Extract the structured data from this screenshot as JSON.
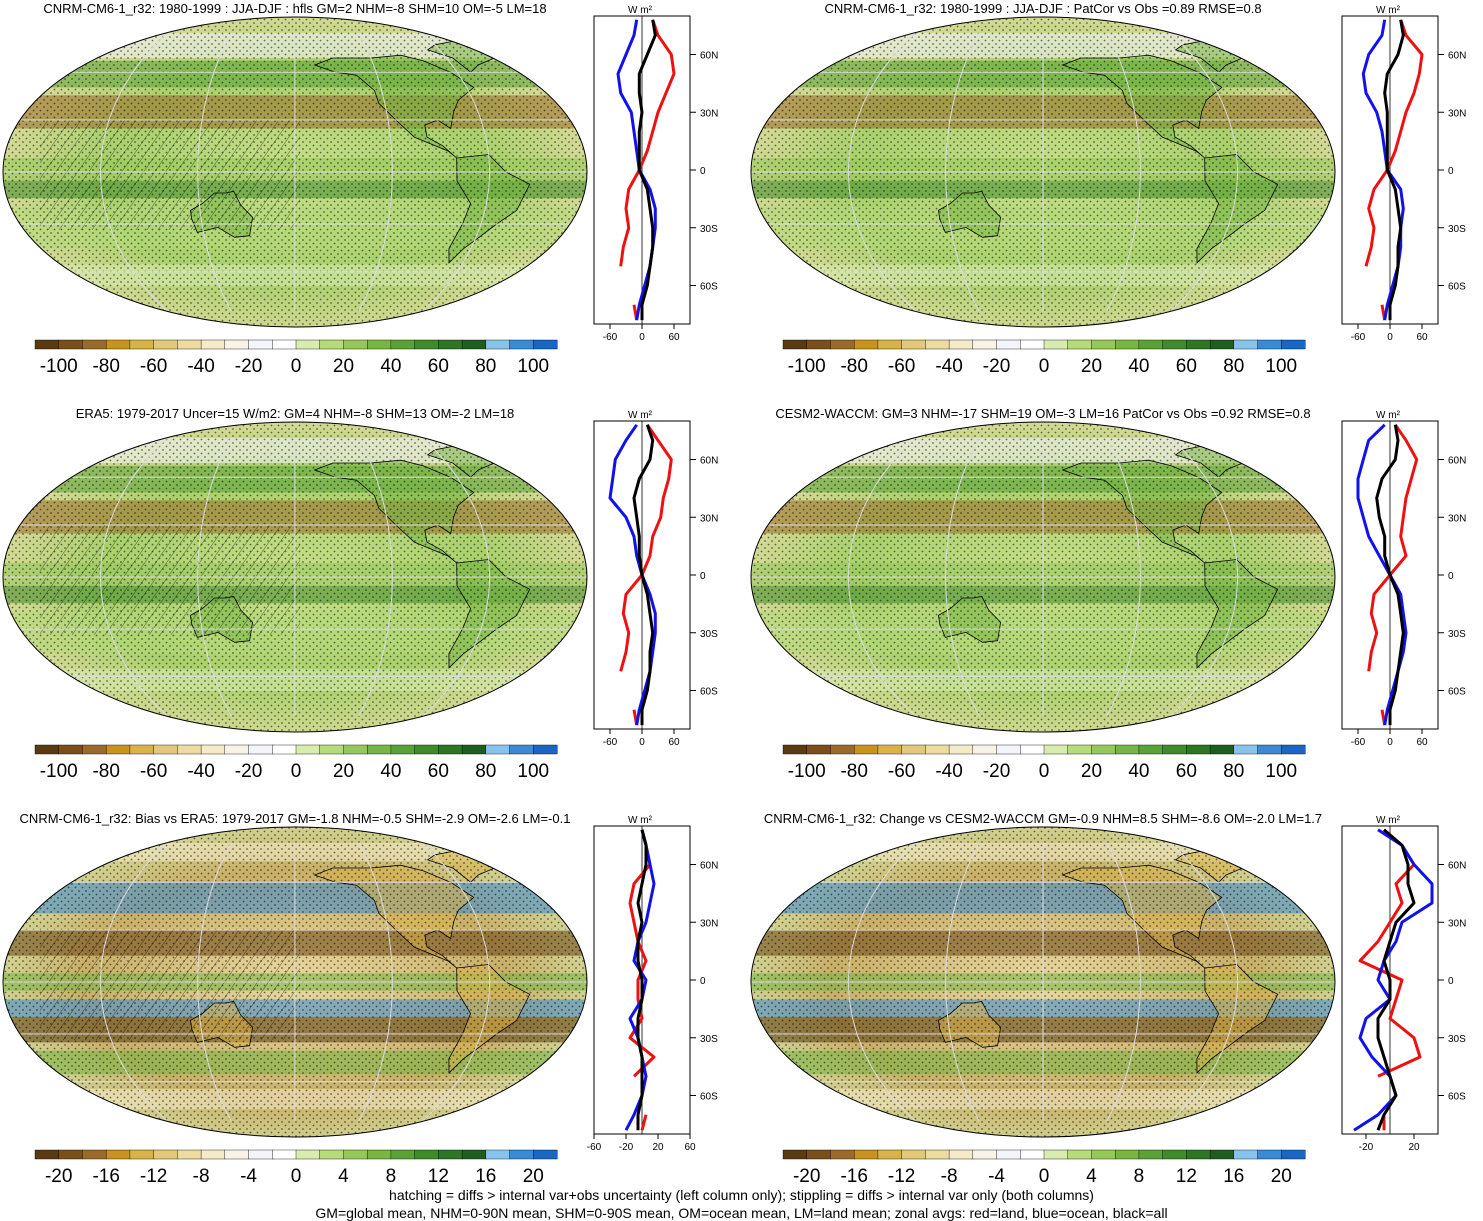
{
  "footer": {
    "line1": "hatching = diffs > internal var+obs uncertainty (left column only); stippling = diffs > internal var only (both columns)",
    "line2": "GM=global mean, NHM=0-90N mean, SHM=0-90S mean, OM=ocean mean, LM=land mean; zonal avgs: red=land, blue=ocean, black=all"
  },
  "colors": {
    "land": "#ee1111",
    "ocean": "#1111ee",
    "all": "#000000",
    "palette": [
      "#5a3a10",
      "#7a4f1c",
      "#9a6a2a",
      "#c8941e",
      "#d9b24a",
      "#e3c87a",
      "#eedba0",
      "#f5ebc8",
      "#f8f3e6",
      "#f4f4fb",
      "#ffffff",
      "#d8ecb0",
      "#b5db7a",
      "#95c85a",
      "#77b544",
      "#5aa136",
      "#3f8a2a",
      "#2e7524",
      "#1e5e1e",
      "#88c3ee",
      "#3a8ad6",
      "#1a66c4"
    ]
  },
  "chart_data": [
    {
      "type": "heatmap",
      "title": "CNRM-CM6-1_r32: 1980-1999 : JJA-DJF : hfls GM=2 NHM=-8 SHM=10 OM=-5 LM=18",
      "colorbar_ticks": [
        "-100",
        "-80",
        "-60",
        "-40",
        "-20",
        "0",
        "20",
        "40",
        "60",
        "80",
        "100"
      ],
      "zonal_xticks": [
        "-60",
        "0",
        "60"
      ],
      "zonal_yticks": [
        "60N",
        "30N",
        "0",
        "30S",
        "60S"
      ],
      "zonal_unit": "W m²",
      "zonal_xlim": [
        -90,
        90
      ],
      "zonal_ylim": [
        -80,
        80
      ],
      "zonal": {
        "lat": [
          78,
          70,
          60,
          50,
          40,
          30,
          20,
          10,
          0,
          -10,
          -20,
          -30,
          -40,
          -50,
          -60,
          -70,
          -78
        ],
        "land": [
          20,
          30,
          55,
          60,
          45,
          30,
          20,
          10,
          -5,
          -25,
          -30,
          -25,
          -35,
          -40,
          null,
          -15,
          -10
        ],
        "ocean": [
          -10,
          -15,
          -30,
          -45,
          -40,
          -20,
          -15,
          -10,
          -5,
          15,
          25,
          25,
          20,
          15,
          5,
          -5,
          -10
        ],
        "all": [
          20,
          25,
          10,
          -5,
          -5,
          0,
          -5,
          -5,
          -5,
          10,
          15,
          20,
          20,
          15,
          10,
          0,
          0
        ]
      }
    },
    {
      "type": "heatmap",
      "title": "CNRM-CM6-1_r32: 1980-1999 : JJA-DJF : PatCor vs Obs =0.89 RMSE=0.8",
      "colorbar_ticks": [
        "-100",
        "-80",
        "-60",
        "-40",
        "-20",
        "0",
        "20",
        "40",
        "60",
        "80",
        "100"
      ],
      "zonal_xticks": [
        "-60",
        "0",
        "60"
      ],
      "zonal_yticks": [
        "60N",
        "30N",
        "0",
        "30S",
        "60S"
      ],
      "zonal_unit": "W m²",
      "zonal_xlim": [
        -90,
        90
      ],
      "zonal_ylim": [
        -80,
        80
      ],
      "zonal": {
        "lat": [
          78,
          70,
          60,
          50,
          40,
          30,
          20,
          10,
          0,
          -10,
          -20,
          -30,
          -40,
          -50,
          -60,
          -70,
          -78
        ],
        "land": [
          20,
          30,
          60,
          55,
          45,
          30,
          20,
          10,
          -5,
          -30,
          -40,
          -30,
          -35,
          -45,
          null,
          -15,
          -10
        ],
        "ocean": [
          -10,
          -15,
          -40,
          -50,
          -45,
          -25,
          -15,
          -10,
          -5,
          20,
          25,
          20,
          20,
          15,
          5,
          -5,
          -10
        ],
        "all": [
          20,
          25,
          15,
          -5,
          -10,
          -5,
          -5,
          -5,
          -5,
          10,
          15,
          20,
          15,
          15,
          10,
          0,
          0
        ]
      }
    },
    {
      "type": "heatmap",
      "title": "ERA5: 1979-2017 Uncer=15 W/m2: GM=4 NHM=-8 SHM=13 OM=-2 LM=18",
      "colorbar_ticks": [
        "-100",
        "-80",
        "-60",
        "-40",
        "-20",
        "0",
        "20",
        "40",
        "60",
        "80",
        "100"
      ],
      "zonal_xticks": [
        "-60",
        "0",
        "60"
      ],
      "zonal_yticks": [
        "60N",
        "30N",
        "0",
        "30S",
        "60S"
      ],
      "zonal_unit": "W m²",
      "zonal_xlim": [
        -90,
        90
      ],
      "zonal_ylim": [
        -80,
        80
      ],
      "zonal": {
        "lat": [
          78,
          70,
          60,
          50,
          40,
          30,
          20,
          10,
          0,
          -10,
          -20,
          -30,
          -40,
          -50,
          -60,
          -70,
          -78
        ],
        "land": [
          10,
          30,
          55,
          50,
          40,
          35,
          20,
          15,
          0,
          -30,
          -35,
          -25,
          -30,
          -40,
          null,
          -15,
          -10
        ],
        "ocean": [
          -10,
          -30,
          -50,
          -55,
          -60,
          -30,
          -15,
          -10,
          0,
          15,
          25,
          25,
          20,
          15,
          5,
          -5,
          -10
        ],
        "all": [
          10,
          20,
          15,
          -5,
          -15,
          -10,
          -5,
          -5,
          0,
          10,
          15,
          20,
          15,
          15,
          10,
          0,
          0
        ]
      }
    },
    {
      "type": "heatmap",
      "title": "CESM2-WACCM: GM=3 NHM=-17 SHM=19 OM=-3 LM=16 PatCor vs Obs =0.92 RMSE=0.8",
      "colorbar_ticks": [
        "-100",
        "-80",
        "-60",
        "-40",
        "-20",
        "0",
        "20",
        "40",
        "60",
        "80",
        "100"
      ],
      "zonal_xticks": [
        "-60",
        "0",
        "60"
      ],
      "zonal_yticks": [
        "60N",
        "30N",
        "0",
        "30S",
        "60S"
      ],
      "zonal_unit": "W m²",
      "zonal_xlim": [
        -90,
        90
      ],
      "zonal_ylim": [
        -80,
        80
      ],
      "zonal": {
        "lat": [
          78,
          70,
          60,
          50,
          40,
          30,
          20,
          10,
          0,
          -10,
          -20,
          -30,
          -40,
          -50,
          -60,
          -70,
          -78
        ],
        "land": [
          10,
          30,
          50,
          40,
          30,
          25,
          20,
          30,
          0,
          -30,
          -35,
          -25,
          -35,
          -40,
          null,
          -15,
          -10
        ],
        "ocean": [
          -10,
          -40,
          -50,
          -60,
          -60,
          -50,
          -40,
          -20,
          0,
          20,
          25,
          30,
          25,
          15,
          5,
          -5,
          -10
        ],
        "all": [
          10,
          15,
          10,
          -15,
          -25,
          -20,
          -10,
          -10,
          0,
          15,
          20,
          25,
          20,
          15,
          10,
          0,
          0
        ]
      }
    },
    {
      "type": "heatmap",
      "title": "CNRM-CM6-1_r32: Bias vs ERA5: 1979-2017 GM=-1.8 NHM=-0.5 SHM=-2.9 OM=-2.6 LM=-0.1",
      "colorbar_ticks": [
        "-20",
        "-16",
        "-12",
        "-8",
        "-4",
        "0",
        "4",
        "8",
        "12",
        "16",
        "20"
      ],
      "zonal_xticks": [
        "-60",
        "-20",
        "20",
        "60"
      ],
      "zonal_yticks": [
        "60N",
        "30N",
        "0",
        "30S",
        "60S"
      ],
      "zonal_unit": "W m²",
      "zonal_xlim": [
        -60,
        60
      ],
      "zonal_ylim": [
        -80,
        80
      ],
      "zonal": {
        "lat": [
          78,
          70,
          60,
          50,
          40,
          30,
          20,
          10,
          0,
          -10,
          -20,
          -30,
          -40,
          -50,
          -60,
          -70,
          -78
        ],
        "land": [
          0,
          5,
          10,
          -10,
          -15,
          -10,
          -5,
          5,
          -5,
          -5,
          0,
          -15,
          15,
          -10,
          null,
          5,
          0
        ],
        "ocean": [
          0,
          5,
          10,
          15,
          10,
          5,
          -5,
          -10,
          5,
          0,
          -15,
          -5,
          0,
          5,
          0,
          -10,
          -20
        ],
        "all": [
          0,
          5,
          5,
          0,
          -5,
          0,
          -5,
          -5,
          0,
          0,
          -5,
          -5,
          0,
          0,
          0,
          -5,
          -5
        ]
      }
    },
    {
      "type": "heatmap",
      "title": "CNRM-CM6-1_r32: Change vs CESM2-WACCM GM=-0.9 NHM=8.5 SHM=-8.6 OM=-2.0 LM=1.7",
      "colorbar_ticks": [
        "-20",
        "-16",
        "-12",
        "-8",
        "-4",
        "0",
        "4",
        "8",
        "12",
        "16",
        "20"
      ],
      "zonal_xticks": [
        "-20",
        "20"
      ],
      "zonal_yticks": [
        "60N",
        "30N",
        "0",
        "30S",
        "60S"
      ],
      "zonal_unit": "W m²",
      "zonal_xlim": [
        -40,
        40
      ],
      "zonal_ylim": [
        -80,
        80
      ],
      "zonal": {
        "lat": [
          78,
          70,
          60,
          50,
          40,
          30,
          20,
          10,
          0,
          -10,
          -20,
          -30,
          -40,
          -50,
          -60,
          -70,
          -78
        ],
        "land": [
          -5,
          10,
          20,
          5,
          10,
          0,
          -10,
          -25,
          10,
          5,
          0,
          20,
          25,
          -10,
          null,
          -5,
          -5
        ],
        "ocean": [
          -10,
          10,
          20,
          35,
          35,
          10,
          5,
          -5,
          -10,
          0,
          -20,
          -25,
          -15,
          0,
          5,
          -10,
          -30
        ],
        "all": [
          -5,
          10,
          15,
          15,
          20,
          5,
          0,
          -5,
          0,
          0,
          -10,
          -10,
          -5,
          0,
          5,
          -5,
          -10
        ]
      }
    }
  ]
}
